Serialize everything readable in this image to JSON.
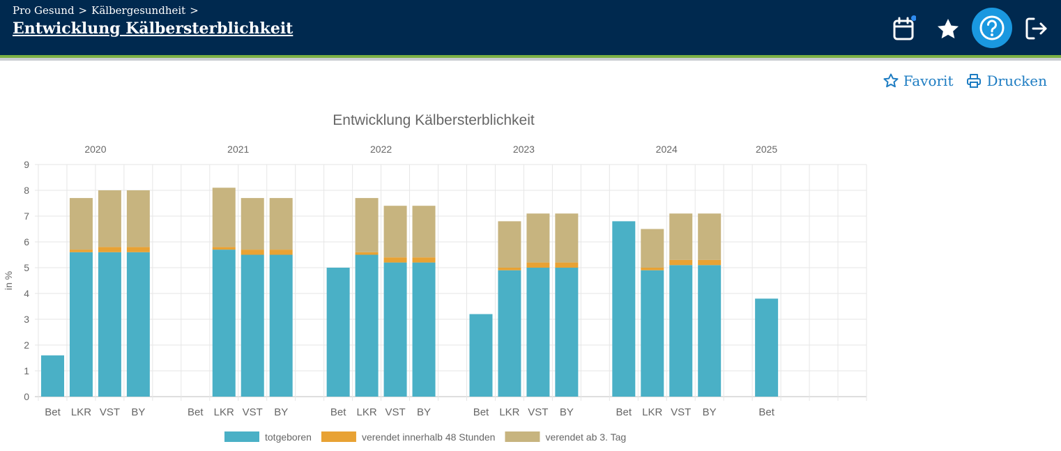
{
  "header": {
    "breadcrumbs": [
      "Pro Gesund",
      ">",
      "Kälbergesundheit",
      ">"
    ],
    "title": "Entwicklung Kälbersterblichkeit",
    "icons": [
      "calendar-icon",
      "star-icon",
      "help-icon",
      "logout-icon"
    ],
    "colors": {
      "background": "#00294f",
      "accent_stripe": "#7bb043",
      "help_button": "#1a98e0",
      "notification_dot": "#2f8cf0"
    }
  },
  "actions": {
    "favorite_label": "Favorit",
    "print_label": "Drucken"
  },
  "chart_data": {
    "type": "bar",
    "stacked": true,
    "title": "Entwicklung Kälbersterblichkeit",
    "xlabel": "",
    "ylabel": "in %",
    "ylim": [
      0,
      9
    ],
    "yticks": [
      0,
      1,
      2,
      3,
      4,
      5,
      6,
      7,
      8,
      9
    ],
    "grid": true,
    "legend_position": "bottom",
    "groups": [
      "2020",
      "2021",
      "2022",
      "2023",
      "2024",
      "2025"
    ],
    "categories": [
      "Bet",
      "LKR",
      "VST",
      "BY"
    ],
    "series": [
      {
        "name": "totgeboren",
        "color": "#4ab0c6",
        "values": [
          [
            1.6,
            5.6,
            5.6,
            5.6
          ],
          [
            0,
            5.7,
            5.5,
            5.5
          ],
          [
            5.0,
            5.5,
            5.2,
            5.2
          ],
          [
            3.2,
            4.9,
            5.0,
            5.0
          ],
          [
            6.8,
            4.9,
            5.1,
            5.1
          ],
          [
            3.8,
            null,
            null,
            null
          ]
        ]
      },
      {
        "name": "verendet innerhalb 48 Stunden",
        "color": "#e8a234",
        "values": [
          [
            0,
            0.1,
            0.2,
            0.2
          ],
          [
            0,
            0.1,
            0.2,
            0.2
          ],
          [
            0,
            0.1,
            0.2,
            0.2
          ],
          [
            0,
            0.1,
            0.2,
            0.2
          ],
          [
            0,
            0.1,
            0.2,
            0.2
          ],
          [
            0,
            null,
            null,
            null
          ]
        ]
      },
      {
        "name": "verendet ab 3. Tag",
        "color": "#c7b47f",
        "values": [
          [
            0,
            2.0,
            2.2,
            2.2
          ],
          [
            0,
            2.3,
            2.0,
            2.0
          ],
          [
            0,
            2.1,
            2.0,
            2.0
          ],
          [
            0,
            1.8,
            1.9,
            1.9
          ],
          [
            0,
            1.5,
            1.8,
            1.8
          ],
          [
            0,
            null,
            null,
            null
          ]
        ]
      }
    ]
  }
}
